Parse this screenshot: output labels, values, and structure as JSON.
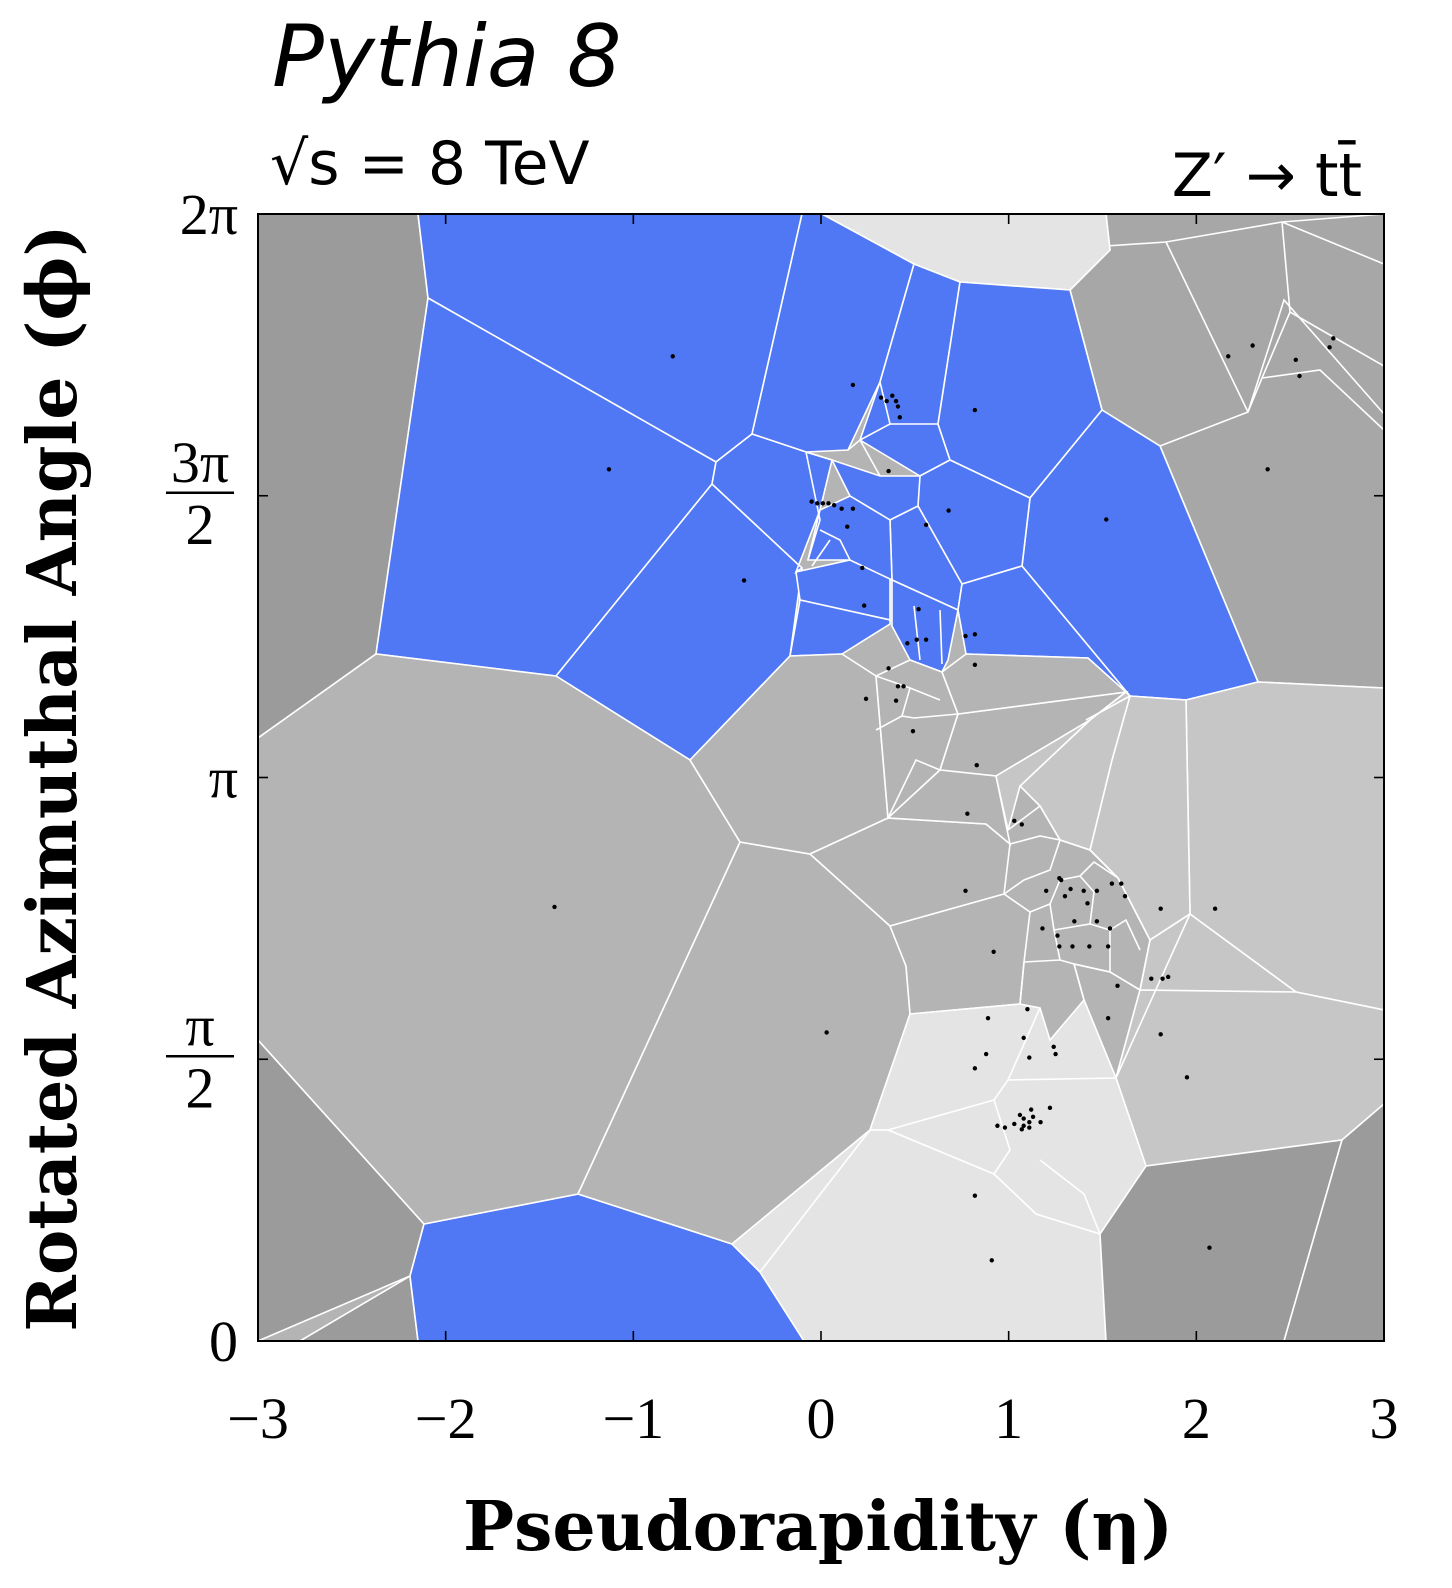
{
  "chart_data": {
    "type": "scatter",
    "title": "Pythia 8",
    "energy_label": "√s = 8 TeV",
    "process_label": "Z′ → tt̄",
    "xlabel": "Pseudorapidity (η)",
    "ylabel": "Rotated Azimuthal Angle (ϕ)",
    "xlim": [
      -3,
      3
    ],
    "ylim": [
      0,
      6.2832
    ],
    "xticks": [
      {
        "value": -3,
        "label": "−3"
      },
      {
        "value": -2,
        "label": "−2"
      },
      {
        "value": -1,
        "label": "−1"
      },
      {
        "value": 0,
        "label": "0"
      },
      {
        "value": 1,
        "label": "1"
      },
      {
        "value": 2,
        "label": "2"
      },
      {
        "value": 3,
        "label": "3"
      }
    ],
    "yticks": [
      {
        "value": 0,
        "label": "0"
      },
      {
        "value": 1.5708,
        "num": "π",
        "den": "2"
      },
      {
        "value": 3.1416,
        "label": "π"
      },
      {
        "value": 4.7124,
        "num": "3π",
        "den": "2"
      },
      {
        "value": 6.2832,
        "label": "2π"
      }
    ],
    "grid": false,
    "legend": "none",
    "colors": {
      "highlight": "#5078f5",
      "cell_dark": "#9b9b9b",
      "cell_medium": "#b4b4b4",
      "cell_light": "#c6c6c6",
      "cell_lightest": "#e4e4e4",
      "cell_border": "#ffffff",
      "marker": "#000000"
    },
    "points": [
      [
        -0.79,
        5.49
      ],
      [
        -1.13,
        4.86
      ],
      [
        -0.41,
        4.24
      ],
      [
        0.17,
        5.33
      ],
      [
        0.32,
        5.26
      ],
      [
        0.38,
        5.27
      ],
      [
        0.4,
        5.24
      ],
      [
        0.41,
        5.21
      ],
      [
        0.42,
        5.15
      ],
      [
        0.35,
        5.24
      ],
      [
        0.82,
        5.19
      ],
      [
        0.36,
        4.85
      ],
      [
        -0.05,
        4.68
      ],
      [
        -0.02,
        4.67
      ],
      [
        0.01,
        4.67
      ],
      [
        0.04,
        4.67
      ],
      [
        0.07,
        4.66
      ],
      [
        0.11,
        4.64
      ],
      [
        0.17,
        4.64
      ],
      [
        0.14,
        4.54
      ],
      [
        0.56,
        4.55
      ],
      [
        0.68,
        4.63
      ],
      [
        0.22,
        4.31
      ],
      [
        0.23,
        4.1
      ],
      [
        0.52,
        4.08
      ],
      [
        0.51,
        3.91
      ],
      [
        0.56,
        3.91
      ],
      [
        0.46,
        3.89
      ],
      [
        0.77,
        3.93
      ],
      [
        0.82,
        3.94
      ],
      [
        0.36,
        3.75
      ],
      [
        0.82,
        3.77
      ],
      [
        0.41,
        3.65
      ],
      [
        0.44,
        3.65
      ],
      [
        0.24,
        3.58
      ],
      [
        0.4,
        3.57
      ],
      [
        0.49,
        3.4
      ],
      [
        0.83,
        3.21
      ],
      [
        1.52,
        4.58
      ],
      [
        2.17,
        5.49
      ],
      [
        2.3,
        5.55
      ],
      [
        2.53,
        5.47
      ],
      [
        2.55,
        5.38
      ],
      [
        2.71,
        5.54
      ],
      [
        2.73,
        5.59
      ],
      [
        2.38,
        4.86
      ],
      [
        0.78,
        2.94
      ],
      [
        1.03,
        2.9
      ],
      [
        1.07,
        2.88
      ],
      [
        1.27,
        2.58
      ],
      [
        1.2,
        2.51
      ],
      [
        1.28,
        2.57
      ],
      [
        1.33,
        2.52
      ],
      [
        1.4,
        2.51
      ],
      [
        1.47,
        2.51
      ],
      [
        1.55,
        2.55
      ],
      [
        1.6,
        2.55
      ],
      [
        1.62,
        2.48
      ],
      [
        1.42,
        2.44
      ],
      [
        1.3,
        2.48
      ],
      [
        1.35,
        2.34
      ],
      [
        1.47,
        2.34
      ],
      [
        1.54,
        2.3
      ],
      [
        1.34,
        2.2
      ],
      [
        1.27,
        2.2
      ],
      [
        1.43,
        2.2
      ],
      [
        1.53,
        2.2
      ],
      [
        1.18,
        2.3
      ],
      [
        1.26,
        2.26
      ],
      [
        1.81,
        2.41
      ],
      [
        2.1,
        2.41
      ],
      [
        1.76,
        2.02
      ],
      [
        1.82,
        2.02
      ],
      [
        1.85,
        2.03
      ],
      [
        0.77,
        2.51
      ],
      [
        0.92,
        2.17
      ],
      [
        1.58,
        1.98
      ],
      [
        1.53,
        1.8
      ],
      [
        1.1,
        1.85
      ],
      [
        0.89,
        1.8
      ],
      [
        1.08,
        1.69
      ],
      [
        1.24,
        1.64
      ],
      [
        1.25,
        1.6
      ],
      [
        0.88,
        1.6
      ],
      [
        1.11,
        1.58
      ],
      [
        1.81,
        1.71
      ],
      [
        1.95,
        1.47
      ],
      [
        0.82,
        1.52
      ],
      [
        -1.42,
        2.42
      ],
      [
        0.03,
        1.72
      ],
      [
        1.03,
        1.21
      ],
      [
        1.06,
        1.26
      ],
      [
        1.08,
        1.24
      ],
      [
        1.08,
        1.2
      ],
      [
        1.11,
        1.19
      ],
      [
        1.11,
        1.22
      ],
      [
        1.13,
        1.25
      ],
      [
        1.12,
        1.29
      ],
      [
        1.17,
        1.22
      ],
      [
        1.22,
        1.3
      ],
      [
        0.94,
        1.2
      ],
      [
        0.82,
        0.81
      ],
      [
        0.91,
        0.45
      ],
      [
        2.07,
        0.52
      ],
      [
        0.98,
        1.19
      ],
      [
        1.07,
        1.18
      ]
    ]
  }
}
